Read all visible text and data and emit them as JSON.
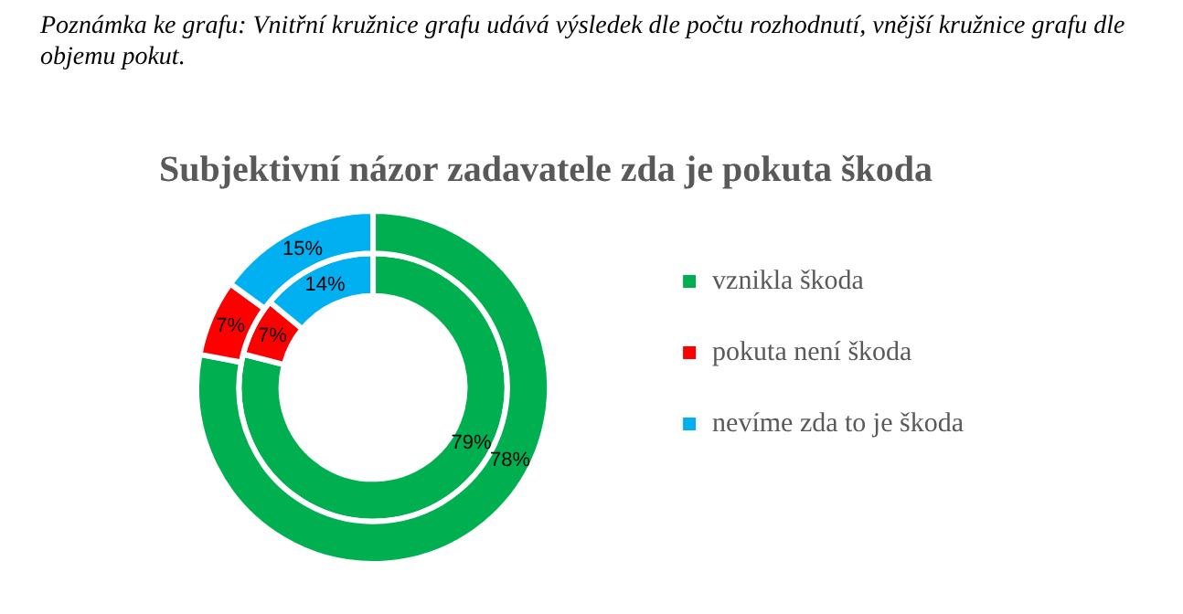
{
  "chart_data": {
    "type": "donut",
    "title": "Subjektivní názor zadavatele zda je pokuta škoda",
    "annotations": [
      "Poznámka ke grafu: Vnitřní kružnice grafu udává výsledek dle počtu rozhodnutí, vnější kružnice grafu dle objemu pokut."
    ],
    "categories": [
      "vznikla škoda",
      "pokuta není škoda",
      "nevíme zda to je škoda"
    ],
    "colors": [
      "#00b050",
      "#ff0000",
      "#00b0f0"
    ],
    "series": [
      {
        "values": [
          78,
          7,
          15
        ],
        "value_labels": [
          "78%",
          "7%",
          "15%"
        ]
      },
      {
        "values": [
          79,
          7,
          14
        ],
        "value_labels": [
          "79%",
          "7%",
          "14%"
        ]
      }
    ],
    "legend": "right"
  }
}
